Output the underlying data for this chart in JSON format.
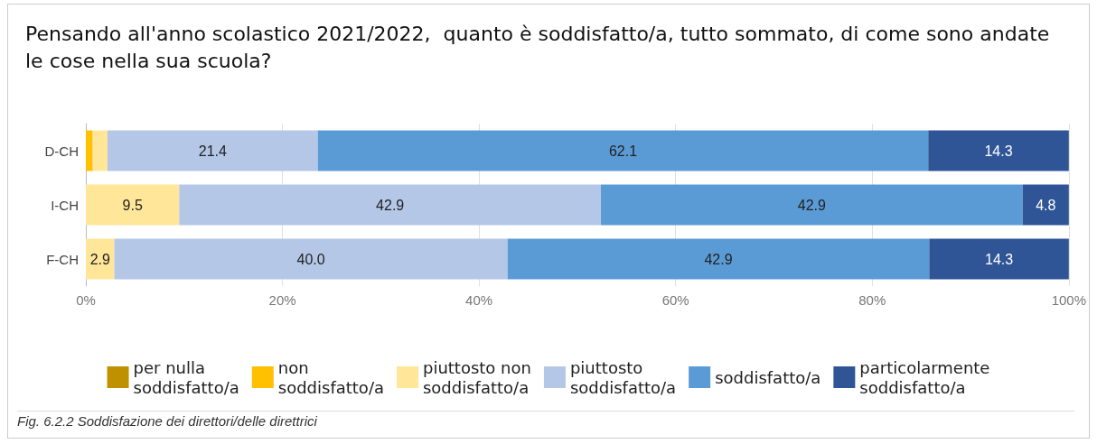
{
  "chart_data": {
    "type": "bar",
    "orientation": "horizontal",
    "stacked": true,
    "title": "Pensando all'anno scolastico 2021/2022,  quanto è soddisfatto/a, tutto sommato, di come sono andate le cose nella sua scuola?",
    "categories": [
      "D-CH",
      "I-CH",
      "F-CH"
    ],
    "series": [
      {
        "name": "per nulla soddisfatto/a",
        "color": "#bf9000",
        "values": [
          0,
          0,
          0
        ],
        "value_labels": [
          null,
          null,
          null
        ]
      },
      {
        "name": "non soddisfatto/a",
        "color": "#ffc000",
        "values": [
          0.7,
          0,
          0
        ],
        "value_labels": [
          null,
          null,
          null
        ]
      },
      {
        "name": "piuttosto non soddisfatto/a",
        "color": "#ffe699",
        "values": [
          1.5,
          9.5,
          2.9
        ],
        "value_labels": [
          null,
          "9.5",
          "2.9"
        ]
      },
      {
        "name": "piuttosto soddisfatto/a",
        "color": "#b4c7e7",
        "values": [
          21.4,
          42.9,
          40.0
        ],
        "value_labels": [
          "21.4",
          "42.9",
          "40.0"
        ]
      },
      {
        "name": "soddisfatto/a",
        "color": "#5b9bd5",
        "values": [
          62.1,
          42.9,
          42.9
        ],
        "value_labels": [
          "62.1",
          "42.9",
          "42.9"
        ]
      },
      {
        "name": "particolarmente soddisfatto/a",
        "color": "#2f5597",
        "values": [
          14.3,
          4.8,
          14.3
        ],
        "value_labels": [
          "14.3",
          "4.8",
          "14.3"
        ]
      }
    ],
    "xlim": [
      0,
      100
    ],
    "xticks": [
      {
        "value": 0,
        "label": "0%"
      },
      {
        "value": 20,
        "label": "20%"
      },
      {
        "value": 40,
        "label": "40%"
      },
      {
        "value": 60,
        "label": "60%"
      },
      {
        "value": 80,
        "label": "80%"
      },
      {
        "value": 100,
        "label": "100%"
      }
    ],
    "grid": "x",
    "legend": "bottom",
    "annotations": [
      "Fig. 6.2.2 Soddisfazione dei direttori/delle direttrici"
    ]
  }
}
